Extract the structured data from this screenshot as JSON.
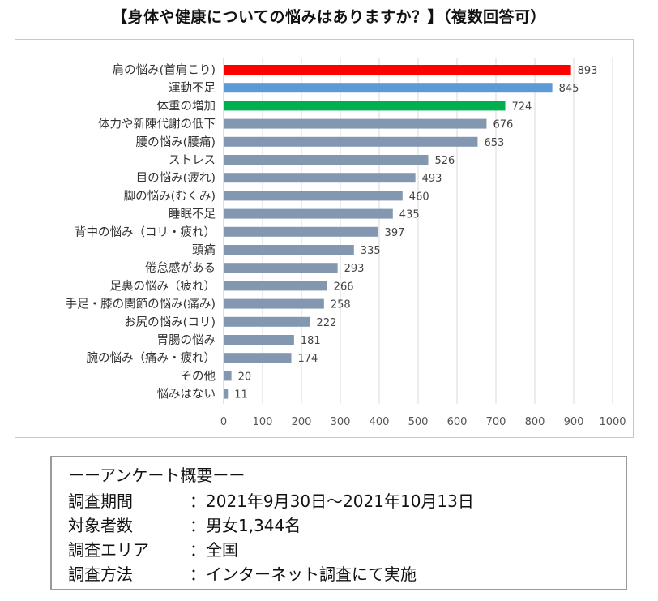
{
  "page": {
    "title": "【身体や健康についての悩みはありますか？】（複数回答可）"
  },
  "chart_data": {
    "type": "bar",
    "orientation": "horizontal",
    "title": "【身体や健康についての悩みはありますか？】（複数回答可）",
    "xlabel": "",
    "ylabel": "",
    "xlim": [
      0,
      1000
    ],
    "xticks": [
      0,
      100,
      200,
      300,
      400,
      500,
      600,
      700,
      800,
      900,
      1000
    ],
    "grid": "vertical",
    "categories": [
      "肩の悩み(首肩こり)",
      "運動不足",
      "体重の増加",
      "体力や新陳代謝の低下",
      "腰の悩み(腰痛)",
      "ストレス",
      "目の悩み(疲れ)",
      "脚の悩み(むくみ)",
      "睡眠不足",
      "背中の悩み（コリ・疲れ）",
      "頭痛",
      "倦怠感がある",
      "足裏の悩み（疲れ）",
      "手足・膝の関節の悩み(痛み)",
      "お尻の悩み(コリ)",
      "胃腸の悩み",
      "腕の悩み（痛み・疲れ）",
      "その他",
      "悩みはない"
    ],
    "values": [
      893,
      845,
      724,
      676,
      653,
      526,
      493,
      460,
      435,
      397,
      335,
      293,
      266,
      258,
      222,
      181,
      174,
      20,
      11
    ],
    "colors": [
      "#ff0000",
      "#5b9bd5",
      "#00b050",
      "#8497b0",
      "#8497b0",
      "#8497b0",
      "#8497b0",
      "#8497b0",
      "#8497b0",
      "#8497b0",
      "#8497b0",
      "#8497b0",
      "#8497b0",
      "#8497b0",
      "#8497b0",
      "#8497b0",
      "#8497b0",
      "#8497b0",
      "#8497b0"
    ]
  },
  "survey": {
    "heading": "ーーアンケート概要ーー",
    "rows": [
      {
        "key": "調査期間",
        "value": "：2021年9月30日～2021年10月13日"
      },
      {
        "key": "対象者数",
        "value": "：男女1,344名"
      },
      {
        "key": "調査エリア",
        "value": "：全国"
      },
      {
        "key": "調査方法",
        "value": "：インターネット調査にて実施"
      }
    ]
  }
}
